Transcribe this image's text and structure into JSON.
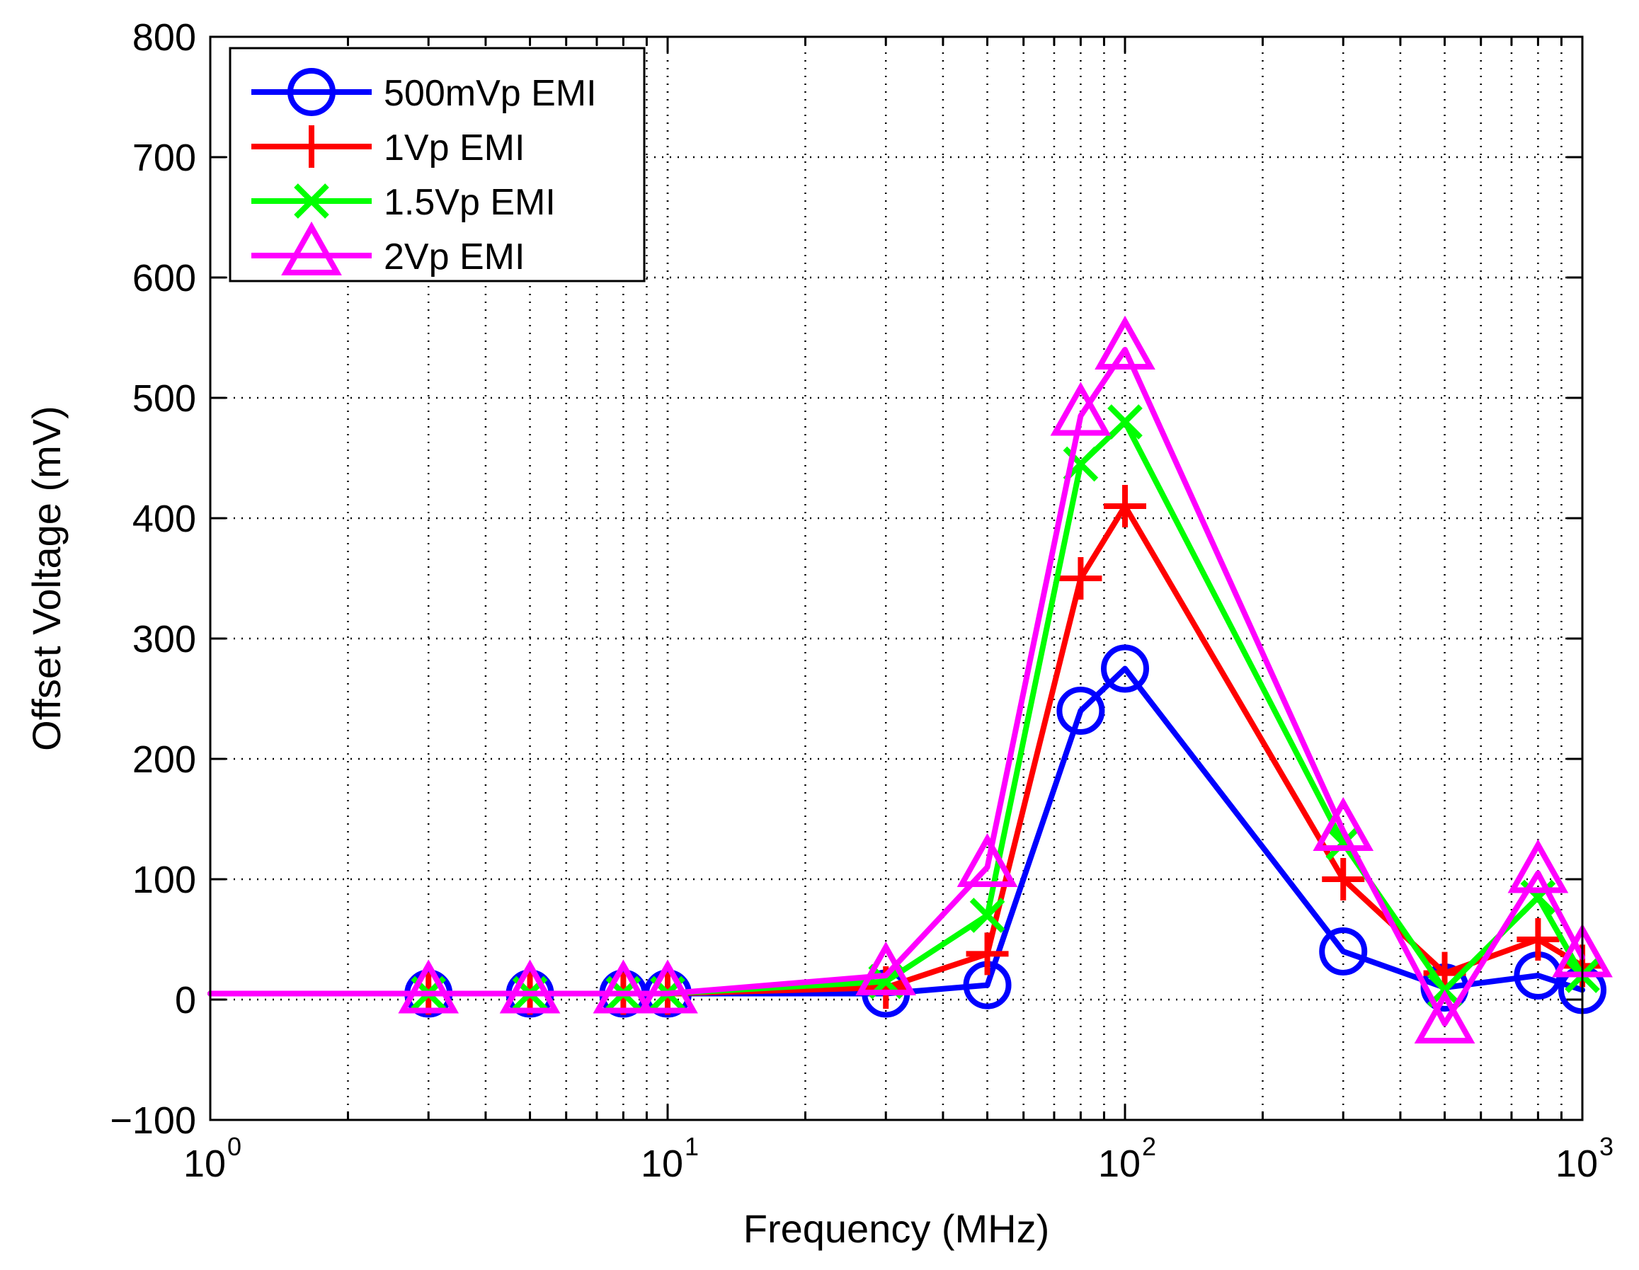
{
  "chart_data": {
    "type": "line",
    "xlabel": "Frequency (MHz)",
    "ylabel": "Offset Voltage (mV)",
    "xscale": "log",
    "xlim": [
      1,
      1000
    ],
    "ylim": [
      -100,
      800
    ],
    "xticks": [
      {
        "base": "10",
        "exp": "0"
      },
      {
        "base": "10",
        "exp": "1"
      },
      {
        "base": "10",
        "exp": "2"
      },
      {
        "base": "10",
        "exp": "3"
      }
    ],
    "yticks": [
      "−100",
      "0",
      "100",
      "200",
      "300",
      "400",
      "500",
      "600",
      "700",
      "800"
    ],
    "grid": true,
    "legend_position": "top-left",
    "x": [
      1,
      3,
      5,
      8,
      10,
      30,
      50,
      80,
      100,
      300,
      500,
      800,
      1000
    ],
    "series": [
      {
        "name": "500mVp EMI",
        "color": "#0000ff",
        "marker": "circle",
        "values": [
          5,
          5,
          5,
          5,
          5,
          5,
          12,
          240,
          275,
          40,
          10,
          20,
          8
        ]
      },
      {
        "name": "1Vp EMI",
        "color": "#ff0000",
        "marker": "plus",
        "values": [
          5,
          5,
          5,
          5,
          5,
          10,
          38,
          350,
          410,
          100,
          22,
          50,
          28
        ]
      },
      {
        "name": "1.5Vp EMI",
        "color": "#00ff00",
        "marker": "x",
        "values": [
          5,
          5,
          5,
          5,
          5,
          15,
          70,
          445,
          480,
          130,
          8,
          85,
          20
        ]
      },
      {
        "name": "2Vp EMI",
        "color": "#ff00ff",
        "marker": "triangle",
        "values": [
          5,
          5,
          5,
          5,
          5,
          20,
          110,
          485,
          540,
          140,
          -20,
          105,
          35
        ]
      }
    ]
  }
}
